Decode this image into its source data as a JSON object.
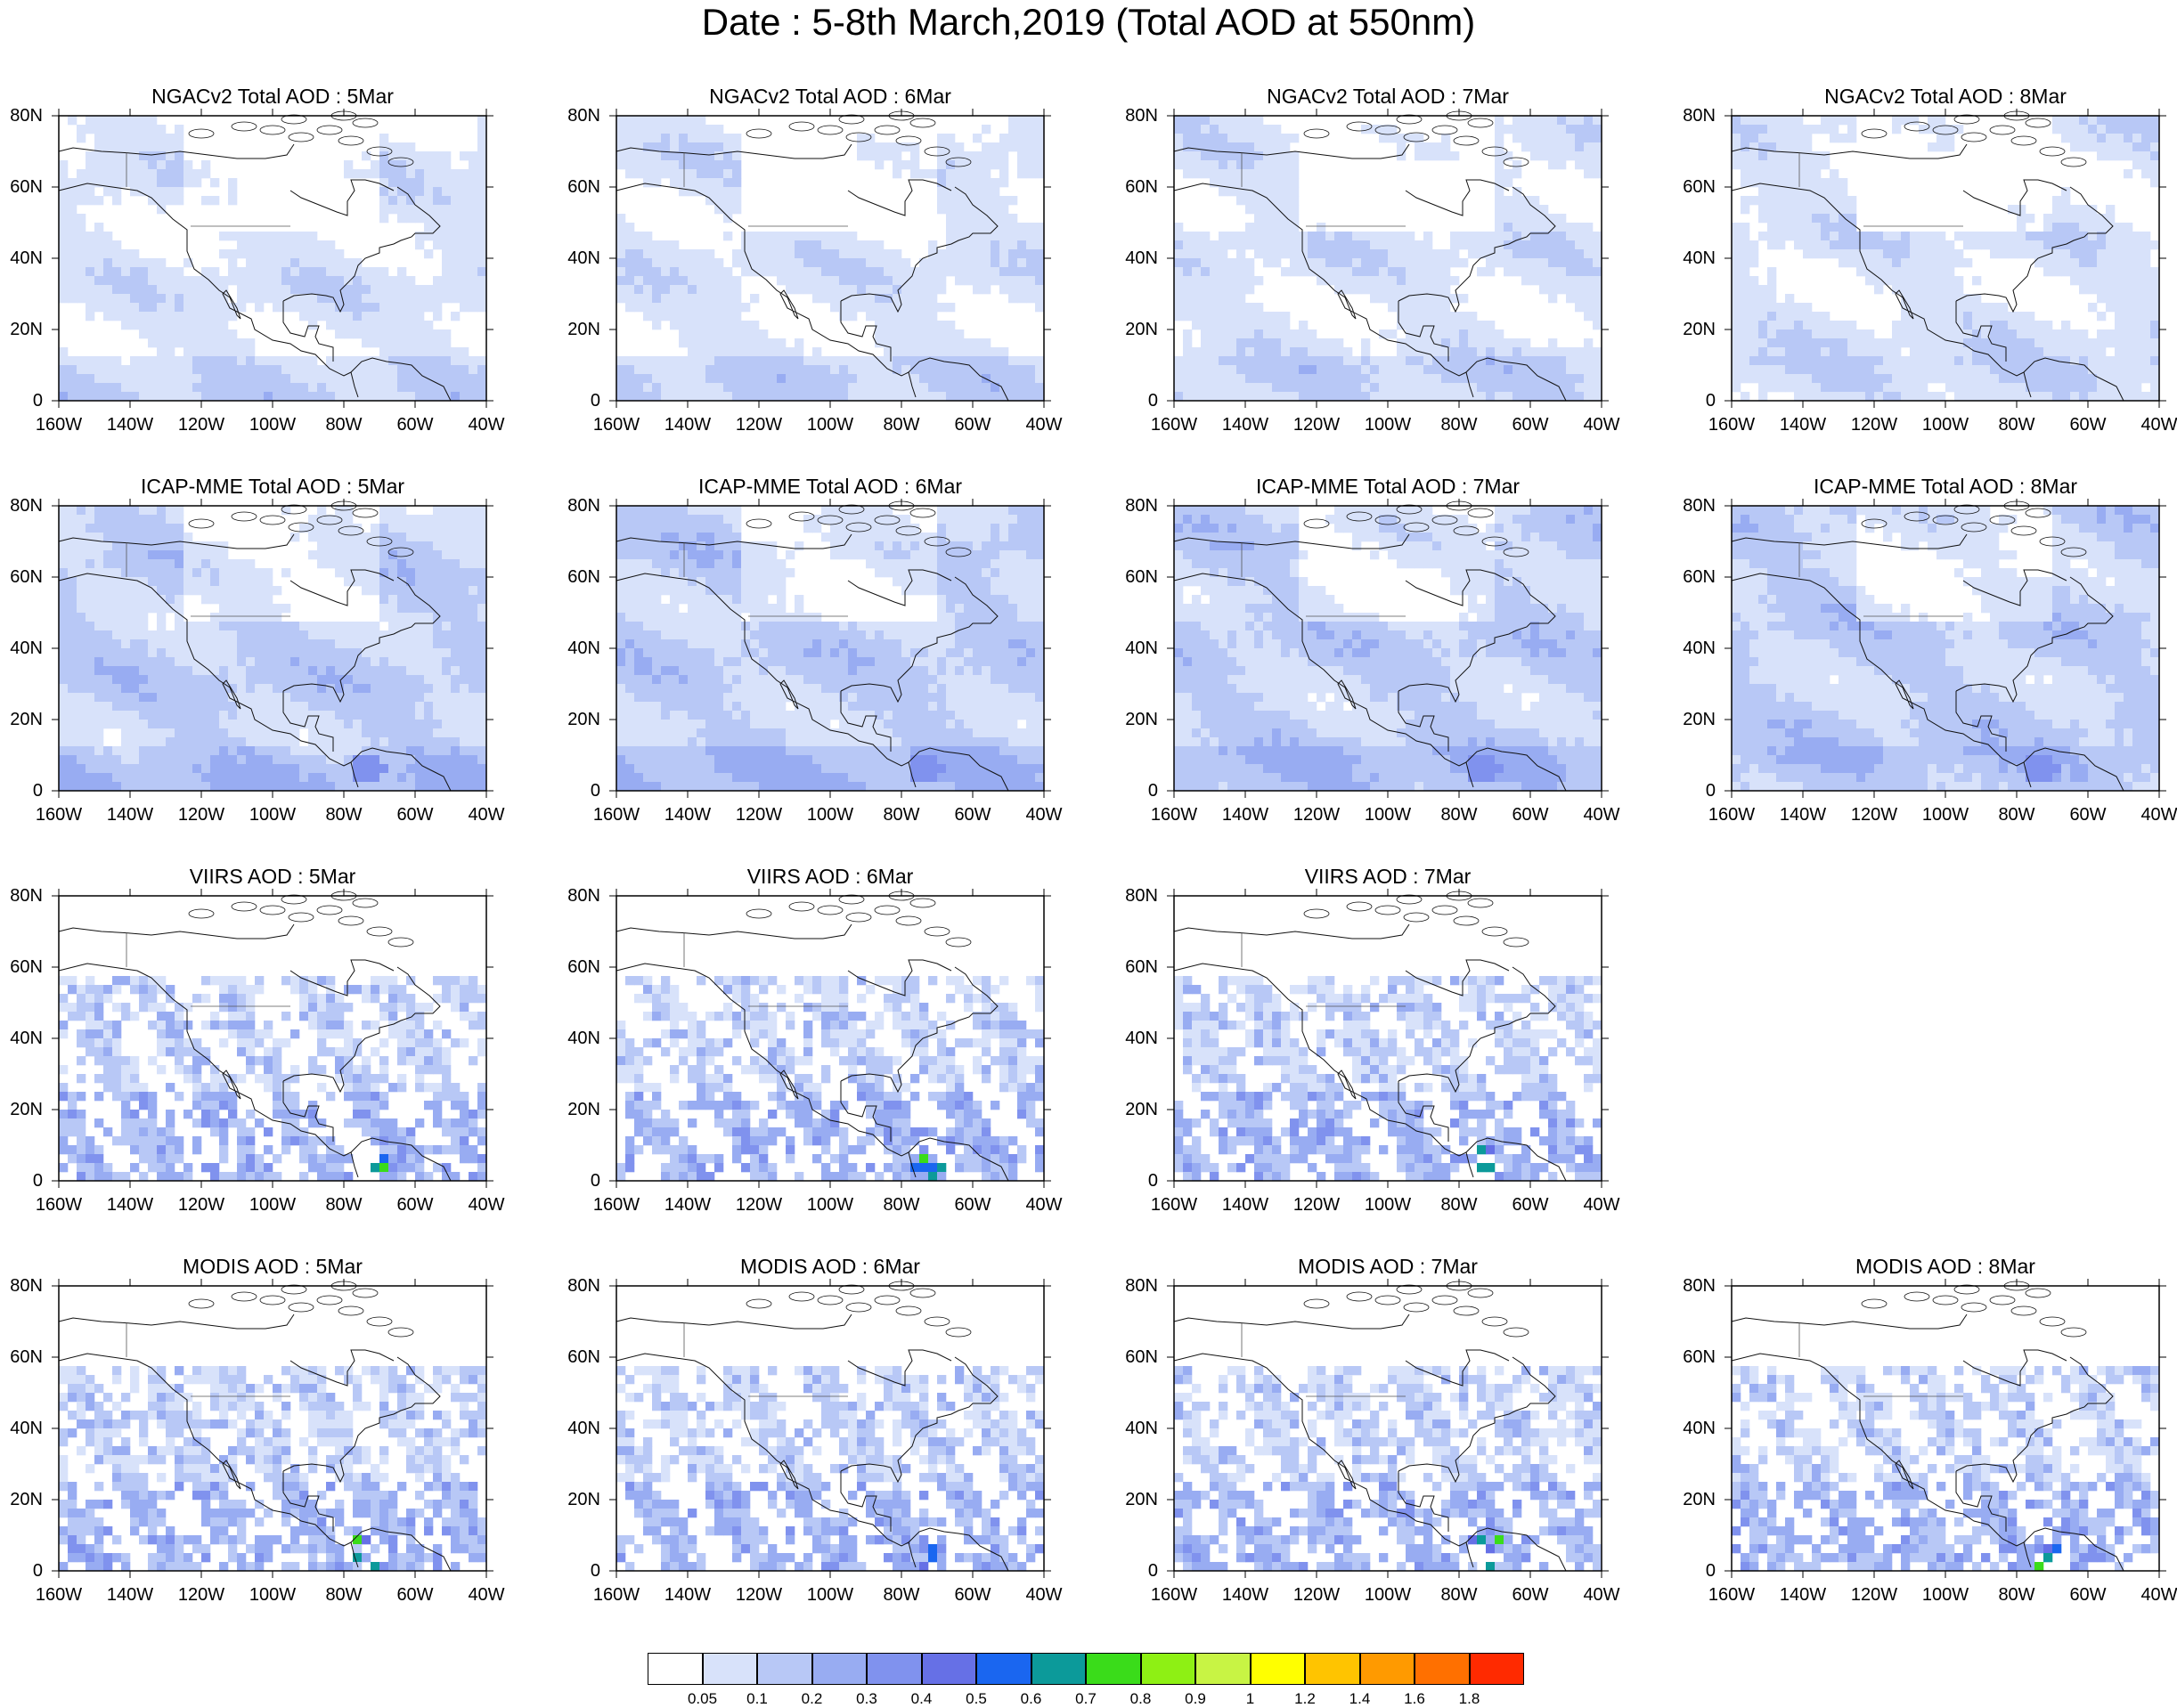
{
  "title": "Date : 5-8th March,2019 (Total AOD at 550nm)",
  "axes": {
    "lat_labels": [
      "80N",
      "60N",
      "40N",
      "20N",
      "0"
    ],
    "lon_labels": [
      "160W",
      "140W",
      "120W",
      "100W",
      "80W",
      "60W",
      "40W"
    ]
  },
  "rows": [
    {
      "product": "NGACv2 Total AOD",
      "type": "model",
      "panels": [
        {
          "title": "NGACv2 Total AOD : 5Mar",
          "day": "5Mar"
        },
        {
          "title": "NGACv2 Total AOD : 6Mar",
          "day": "6Mar"
        },
        {
          "title": "NGACv2 Total AOD : 7Mar",
          "day": "7Mar"
        },
        {
          "title": "NGACv2 Total AOD : 8Mar",
          "day": "8Mar"
        }
      ]
    },
    {
      "product": "ICAP-MME Total AOD",
      "type": "ensemble",
      "panels": [
        {
          "title": "ICAP-MME Total AOD : 5Mar",
          "day": "5Mar"
        },
        {
          "title": "ICAP-MME Total AOD : 6Mar",
          "day": "6Mar"
        },
        {
          "title": "ICAP-MME Total AOD : 7Mar",
          "day": "7Mar"
        },
        {
          "title": "ICAP-MME Total AOD : 8Mar",
          "day": "8Mar"
        }
      ]
    },
    {
      "product": "VIIRS AOD",
      "type": "satellite",
      "panels": [
        {
          "title": "VIIRS AOD : 5Mar",
          "day": "5Mar"
        },
        {
          "title": "VIIRS AOD : 6Mar",
          "day": "6Mar"
        },
        {
          "title": "VIIRS AOD : 7Mar",
          "day": "7Mar"
        }
      ]
    },
    {
      "product": "MODIS AOD",
      "type": "satellite",
      "panels": [
        {
          "title": "MODIS AOD : 5Mar",
          "day": "5Mar"
        },
        {
          "title": "MODIS AOD : 6Mar",
          "day": "6Mar"
        },
        {
          "title": "MODIS AOD : 7Mar",
          "day": "7Mar"
        },
        {
          "title": "MODIS AOD : 8Mar",
          "day": "8Mar"
        }
      ]
    }
  ],
  "colorbar": {
    "labels": [
      "0.05",
      "0.1",
      "0.2",
      "0.3",
      "0.4",
      "0.5",
      "0.6",
      "0.7",
      "0.8",
      "0.9",
      "1",
      "1.2",
      "1.4",
      "1.6",
      "1.8"
    ],
    "colors": [
      "#ffffff",
      "#d8e2fa",
      "#b8c8f6",
      "#98acf2",
      "#8092ee",
      "#6670e6",
      "#1a66f0",
      "#0c9a9a",
      "#3adc1a",
      "#8ef014",
      "#c8f444",
      "#ffff00",
      "#ffc400",
      "#ff9a00",
      "#ff7000",
      "#ff2a00"
    ]
  }
}
